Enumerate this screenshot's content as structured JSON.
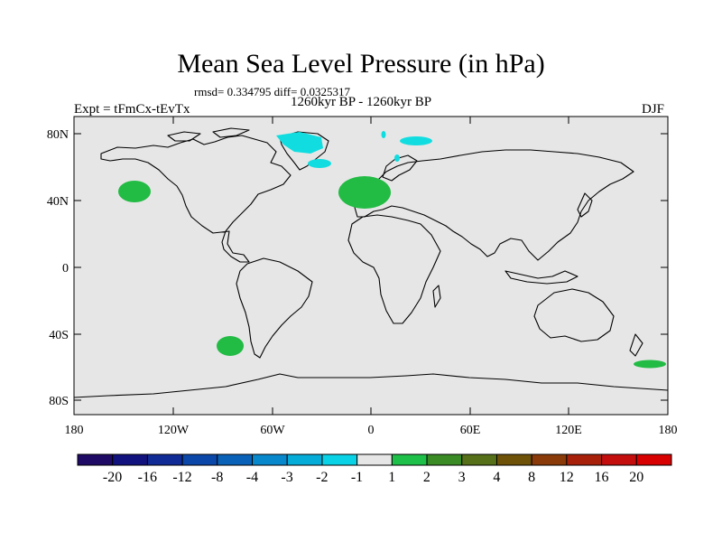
{
  "title": "Mean Sea Level Pressure (in hPa)",
  "stats": "rmsd= 0.334795 diff= 0.0325317",
  "period": "1260kyr BP - 1260kyr BP",
  "experiment": "Expt = tFmCx-tEvTx",
  "season": "DJF",
  "axes": {
    "lat_ticks": [
      "80N",
      "40N",
      "0",
      "40S",
      "80S"
    ],
    "lon_ticks": [
      "180",
      "120W",
      "60W",
      "0",
      "60E",
      "120E",
      "180"
    ]
  },
  "colorbar": {
    "labels": [
      "-20",
      "-16",
      "-12",
      "-8",
      "-4",
      "-3",
      "-2",
      "-1",
      "1",
      "2",
      "3",
      "4",
      "8",
      "12",
      "16",
      "20"
    ],
    "colors": [
      "#1f0a66",
      "#12127e",
      "#102a96",
      "#0b47a8",
      "#0a62b8",
      "#0888cc",
      "#06acd8",
      "#0ad2e6",
      "#e6e6e6",
      "#1ec04a",
      "#3a8a26",
      "#557018",
      "#6e5208",
      "#8a3a08",
      "#a8200a",
      "#c40e0e",
      "#d80000"
    ]
  },
  "colors": {
    "land_ocean_bg": "#e6e6e6",
    "positive_anomaly": "#22bb44",
    "negative_anomaly": "#11dde0"
  }
}
